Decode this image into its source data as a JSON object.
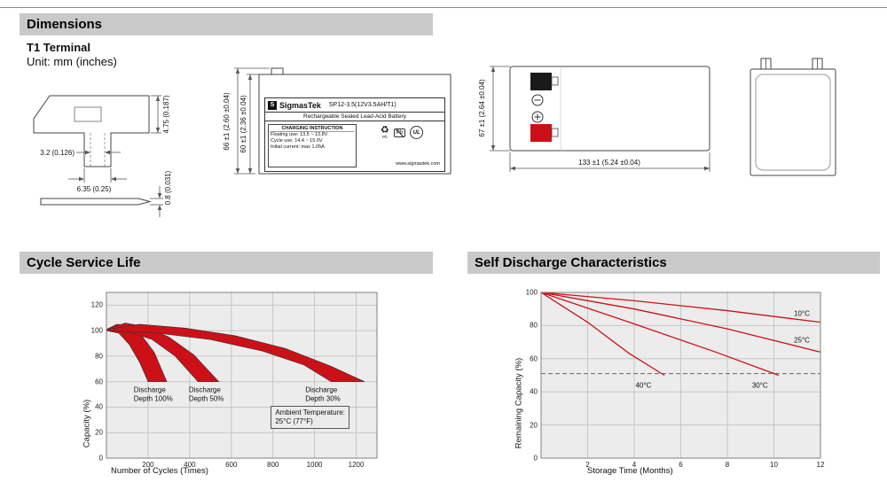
{
  "page": {
    "bg": "#ffffff",
    "header_bg": "#c9c9c9",
    "accent_red": "#cc1017",
    "line_color": "#444444"
  },
  "sections": {
    "dimensions": {
      "title": "Dimensions"
    },
    "cycle": {
      "title": "Cycle Service Life"
    },
    "self_discharge": {
      "title": "Self Discharge Characteristics"
    }
  },
  "dimensions": {
    "subtitle": "T1 Terminal",
    "unit_note": "Unit: mm (inches)",
    "terminal": {
      "dim_width_top": "3.2 (0.126)",
      "dim_width_bottom": "6.35 (0.25)",
      "dim_height": "4.75 (0.187)",
      "dim_thickness": "0.8 (0.031)"
    },
    "front_view": {
      "dim_height_outer": "66 ±1 (2.60 ±0.04)",
      "dim_height_inner": "60 ±1 (2.36 ±0.04)",
      "label": {
        "logo_letter": "S",
        "brand": "SigmasTek",
        "model": "SP12-3.5(12V3.5AH/T1)",
        "type_line": "Rechargeable Sealed Lead-Acid Battery",
        "charging_title": "CHARGING INSTRUCTION",
        "charging_lines": [
          "Floating use: 13.5 ~ 13.8V",
          "Cycle use: 14.4 ~ 15.0V",
          "Initial current: max 1.05A"
        ],
        "icons": {
          "recycle": "♻",
          "pb": "Pb",
          "ul": "UL"
        },
        "website": "www.sigmastek.com"
      }
    },
    "side_view": {
      "dim_height": "67 ±1 (2.64 ±0.04)",
      "dim_length": "133 ±1 (5.24 ±0.04)"
    }
  },
  "chart_data": [
    {
      "id": "cycle-service-life",
      "type": "area",
      "title": "Cycle Service Life",
      "xlabel": "Number of Cycles (Times)",
      "ylabel": "Capacity (%)",
      "xlim": [
        0,
        1300
      ],
      "ylim": [
        0,
        130
      ],
      "xticks": [
        200,
        400,
        600,
        800,
        1000,
        1200
      ],
      "yticks": [
        0,
        20,
        40,
        60,
        80,
        100,
        120
      ],
      "grid": true,
      "bands": [
        {
          "name": "Discharge Depth 100%",
          "upper": [
            [
              0,
              101
            ],
            [
              50,
              105
            ],
            [
              110,
              104
            ],
            [
              170,
              96
            ],
            [
              230,
              83
            ],
            [
              290,
              60
            ]
          ],
          "lower": [
            [
              0,
              100
            ],
            [
              60,
              98
            ],
            [
              110,
              89
            ],
            [
              160,
              75
            ],
            [
              200,
              60
            ]
          ]
        },
        {
          "name": "Discharge Depth 50%",
          "upper": [
            [
              0,
              101
            ],
            [
              90,
              106
            ],
            [
              190,
              103
            ],
            [
              300,
              95
            ],
            [
              420,
              81
            ],
            [
              540,
              60
            ]
          ],
          "lower": [
            [
              0,
              100
            ],
            [
              110,
              99
            ],
            [
              220,
              93
            ],
            [
              330,
              80
            ],
            [
              440,
              60
            ]
          ]
        },
        {
          "name": "Discharge Depth 30%",
          "upper": [
            [
              0,
              101
            ],
            [
              160,
              105
            ],
            [
              380,
              102
            ],
            [
              620,
              96
            ],
            [
              860,
              86
            ],
            [
              1080,
              72
            ],
            [
              1240,
              60
            ]
          ],
          "lower": [
            [
              0,
              100
            ],
            [
              250,
              98
            ],
            [
              500,
              93
            ],
            [
              750,
              84
            ],
            [
              950,
              73
            ],
            [
              1080,
              60
            ]
          ]
        }
      ],
      "labels": [
        {
          "text": "Discharge\nDepth 100%",
          "x": 225,
          "y": 50
        },
        {
          "text": "Discharge\nDepth 50%",
          "x": 480,
          "y": 50
        },
        {
          "text": "Discharge\nDepth 30%",
          "x": 1040,
          "y": 50
        }
      ],
      "annotation": {
        "text": "Ambient Temperature:\n25°C (77°F)",
        "x": 790,
        "y": 41
      }
    },
    {
      "id": "self-discharge",
      "type": "line",
      "title": "Self Discharge Characteristics",
      "xlabel": "Storage Time (Months)",
      "ylabel": "Remaining Capacity (%)",
      "xlim": [
        0,
        12
      ],
      "ylim": [
        0,
        100
      ],
      "xticks": [
        2,
        4,
        6,
        8,
        10,
        12
      ],
      "yticks": [
        0,
        20,
        40,
        60,
        80,
        100
      ],
      "grid": true,
      "series": [
        {
          "name": "10°C",
          "points": [
            [
              0,
              100
            ],
            [
              4,
              95
            ],
            [
              8,
              89
            ],
            [
              12,
              82
            ]
          ],
          "label_at": [
            11.2,
            87
          ]
        },
        {
          "name": "25°C",
          "points": [
            [
              0,
              100
            ],
            [
              4,
              90
            ],
            [
              8,
              78
            ],
            [
              12,
              64
            ]
          ],
          "label_at": [
            11.2,
            71
          ]
        },
        {
          "name": "30°C",
          "points": [
            [
              0,
              100
            ],
            [
              4,
              81
            ],
            [
              7.5,
              64
            ],
            [
              10.2,
              50
            ]
          ],
          "label_at": [
            9.4,
            44
          ]
        },
        {
          "name": "40°C",
          "points": [
            [
              0,
              100
            ],
            [
              2,
              82
            ],
            [
              3.8,
              63
            ],
            [
              5.3,
              50
            ]
          ],
          "label_at": [
            4.4,
            44
          ]
        }
      ],
      "dashed_line_y": 51
    }
  ]
}
